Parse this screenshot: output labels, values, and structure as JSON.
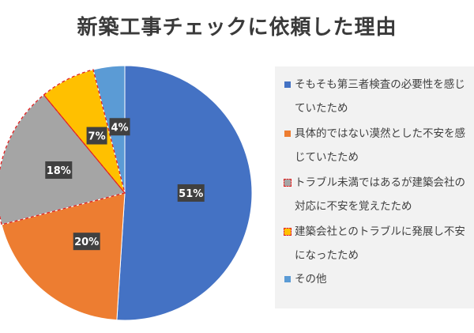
{
  "chart_data": {
    "type": "pie",
    "title": "新築工事チェックに依頼した理由",
    "slices": [
      {
        "name": "そもそも第三者検査の必要性を感じていたため",
        "legend_lines": [
          "そもそも第三者検査の必要性を感じ",
          "ていたため"
        ],
        "value": 51,
        "label": "51%",
        "color": "#4472C4"
      },
      {
        "name": "具体的ではない漠然とした不安を感じていたため",
        "legend_lines": [
          "具体的ではない漠然とした不安を感",
          "じていたため"
        ],
        "value": 20,
        "label": "20%",
        "color": "#ED7D31"
      },
      {
        "name": "トラブル未満ではあるが建築会社の対応に不安を覚えたため",
        "legend_lines": [
          "トラブル未満ではあるが建築会社の",
          "対応に不安を覚えたため"
        ],
        "value": 18,
        "label": "18%",
        "color": "#A5A5A5"
      },
      {
        "name": "建築会社とのトラブルに発展し不安になったため",
        "legend_lines": [
          "建築会社とのトラブルに発展し不安",
          "になったため"
        ],
        "value": 7,
        "label": "7%",
        "color": "#FFC000"
      },
      {
        "name": "その他",
        "legend_lines": [
          "その他"
        ],
        "value": 4,
        "label": "4%",
        "color": "#5B9BD5"
      }
    ],
    "start_angle_deg": 0,
    "direction": "clockwise",
    "highlighted_slices_border": "red-dashed",
    "legend_position": "right"
  }
}
